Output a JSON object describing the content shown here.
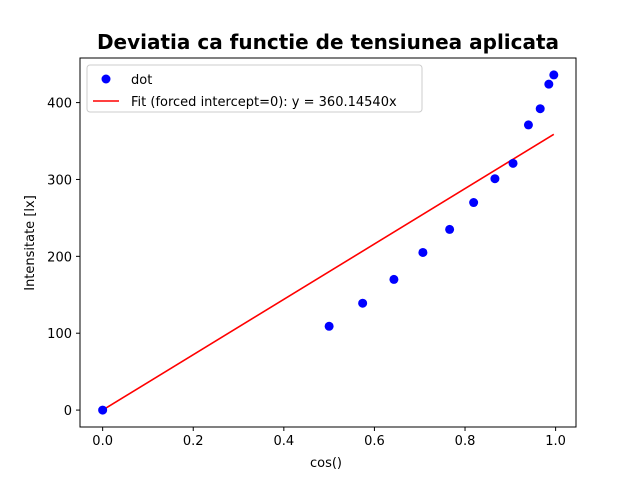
{
  "chart_data": {
    "type": "scatter",
    "title": "Deviatia ca functie de tensiunea aplicata",
    "xlabel": "cos()",
    "ylabel": "Intensitate [lx]",
    "xlim": [
      -0.05,
      1.045
    ],
    "ylim": [
      -22,
      458
    ],
    "x_ticks": [
      0.0,
      0.2,
      0.4,
      0.6,
      0.8,
      1.0
    ],
    "x_tick_labels": [
      "0.0",
      "0.2",
      "0.4",
      "0.6",
      "0.8",
      "1.0"
    ],
    "y_ticks": [
      0,
      100,
      200,
      300,
      400
    ],
    "y_tick_labels": [
      "0",
      "100",
      "200",
      "300",
      "400"
    ],
    "grid": false,
    "legend_position": "upper-left",
    "series": [
      {
        "name": "dot",
        "kind": "scatter",
        "color": "#0000ff",
        "x": [
          0.0,
          0.5,
          0.574,
          0.643,
          0.707,
          0.766,
          0.819,
          0.866,
          0.906,
          0.94,
          0.966,
          0.985,
          0.996
        ],
        "y": [
          0,
          109,
          139,
          170,
          205,
          235,
          270,
          301,
          321,
          371,
          392,
          424,
          436
        ]
      },
      {
        "name": "Fit (forced intercept=0): y = 360.14540x",
        "kind": "line",
        "color": "#ff0000",
        "x": [
          0.0,
          0.996
        ],
        "y": [
          0,
          358.7
        ]
      }
    ]
  }
}
